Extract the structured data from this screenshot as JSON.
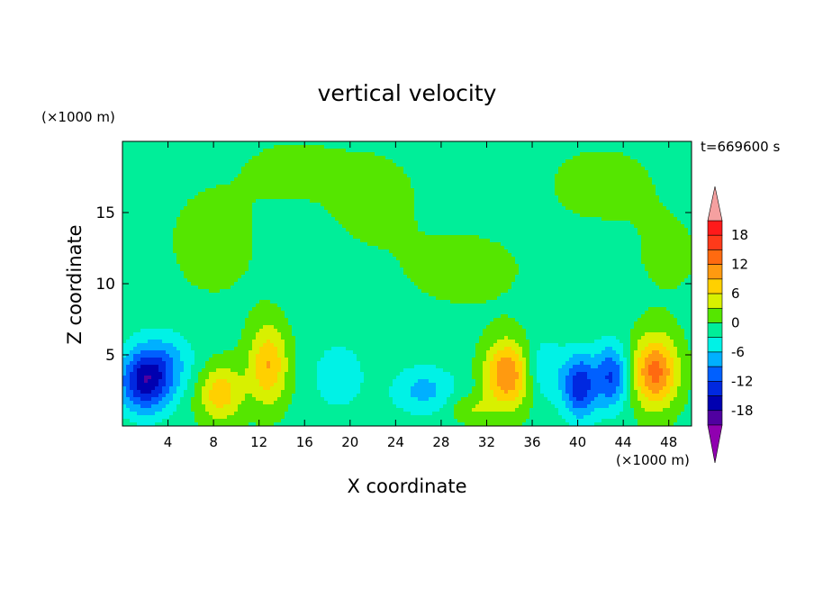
{
  "chart_data": {
    "type": "heatmap",
    "title": "vertical velocity",
    "xlabel": "X coordinate",
    "ylabel": "Z coordinate",
    "x_unit": "(×1000 m)",
    "y_unit": "(×1000 m)",
    "time_label": "t=669600 s",
    "xlim": [
      0,
      50
    ],
    "ylim": [
      0,
      20
    ],
    "x_ticks": [
      4,
      8,
      12,
      16,
      20,
      24,
      28,
      32,
      36,
      40,
      44,
      48
    ],
    "y_ticks": [
      5,
      10,
      15
    ],
    "colorbar_ticks": [
      18,
      12,
      6,
      0,
      -6,
      -12,
      -18
    ],
    "colorbar_levels": [
      {
        "from": 18,
        "to": 21,
        "color": "#ff1a1a"
      },
      {
        "from": 15,
        "to": 18,
        "color": "#ff3a1a"
      },
      {
        "from": 12,
        "to": 15,
        "color": "#ff6a10"
      },
      {
        "from": 9,
        "to": 12,
        "color": "#ff9a10"
      },
      {
        "from": 6,
        "to": 9,
        "color": "#ffd000"
      },
      {
        "from": 3,
        "to": 6,
        "color": "#d8f000"
      },
      {
        "from": 0,
        "to": 3,
        "color": "#55e600"
      },
      {
        "from": -3,
        "to": 0,
        "color": "#00ee99"
      },
      {
        "from": -6,
        "to": -3,
        "color": "#00f2e6"
      },
      {
        "from": -9,
        "to": -6,
        "color": "#00b0ff"
      },
      {
        "from": -12,
        "to": -9,
        "color": "#0060ff"
      },
      {
        "from": -15,
        "to": -12,
        "color": "#0028e0"
      },
      {
        "from": -18,
        "to": -15,
        "color": "#0000b0"
      },
      {
        "from": -21,
        "to": -18,
        "color": "#5000a0"
      }
    ],
    "colorbar_over_color": "#f5a0a0",
    "colorbar_under_color": "#9000b0",
    "background_value": -1,
    "cells": [
      {
        "x": 2,
        "z": 3,
        "v": -14,
        "sx": 1.6,
        "sz": 1.5
      },
      {
        "x": 3.5,
        "z": 4.5,
        "v": -6,
        "sx": 2.0,
        "sz": 1.5
      },
      {
        "x": 8.6,
        "z": 2.3,
        "v": 9,
        "sx": 1.4,
        "sz": 1.4
      },
      {
        "x": 12.8,
        "z": 4.3,
        "v": 10,
        "sx": 1.2,
        "sz": 2.0
      },
      {
        "x": 19,
        "z": 3.5,
        "v": -5,
        "sx": 1.5,
        "sz": 1.5
      },
      {
        "x": 26.5,
        "z": 2.5,
        "v": -6,
        "sx": 2.0,
        "sz": 1.2
      },
      {
        "x": 30.5,
        "z": 1.2,
        "v": 4,
        "sx": 1.4,
        "sz": 0.7
      },
      {
        "x": 33.8,
        "z": 3.6,
        "v": 13,
        "sx": 1.4,
        "sz": 1.7
      },
      {
        "x": 37,
        "z": 4,
        "v": -5,
        "sx": 1.2,
        "sz": 1.5
      },
      {
        "x": 40.2,
        "z": 2.8,
        "v": -13,
        "sx": 1.1,
        "sz": 1.6
      },
      {
        "x": 43,
        "z": 3.5,
        "v": -11,
        "sx": 1.0,
        "sz": 1.6
      },
      {
        "x": 46.8,
        "z": 3.8,
        "v": 14,
        "sx": 1.4,
        "sz": 1.8
      },
      {
        "x": 8,
        "z": 13,
        "v": 2,
        "sx": 3.0,
        "sz": 3.0
      },
      {
        "x": 22,
        "z": 16,
        "v": 2,
        "sx": 3.0,
        "sz": 2.5
      },
      {
        "x": 30,
        "z": 11,
        "v": 2,
        "sx": 4.0,
        "sz": 2.0
      },
      {
        "x": 42,
        "z": 17,
        "v": 2,
        "sx": 3.5,
        "sz": 2.0
      },
      {
        "x": 15,
        "z": 18,
        "v": 2,
        "sx": 3.0,
        "sz": 1.5
      },
      {
        "x": 48,
        "z": 12,
        "v": 1.5,
        "sx": 2.5,
        "sz": 2.5
      }
    ]
  }
}
